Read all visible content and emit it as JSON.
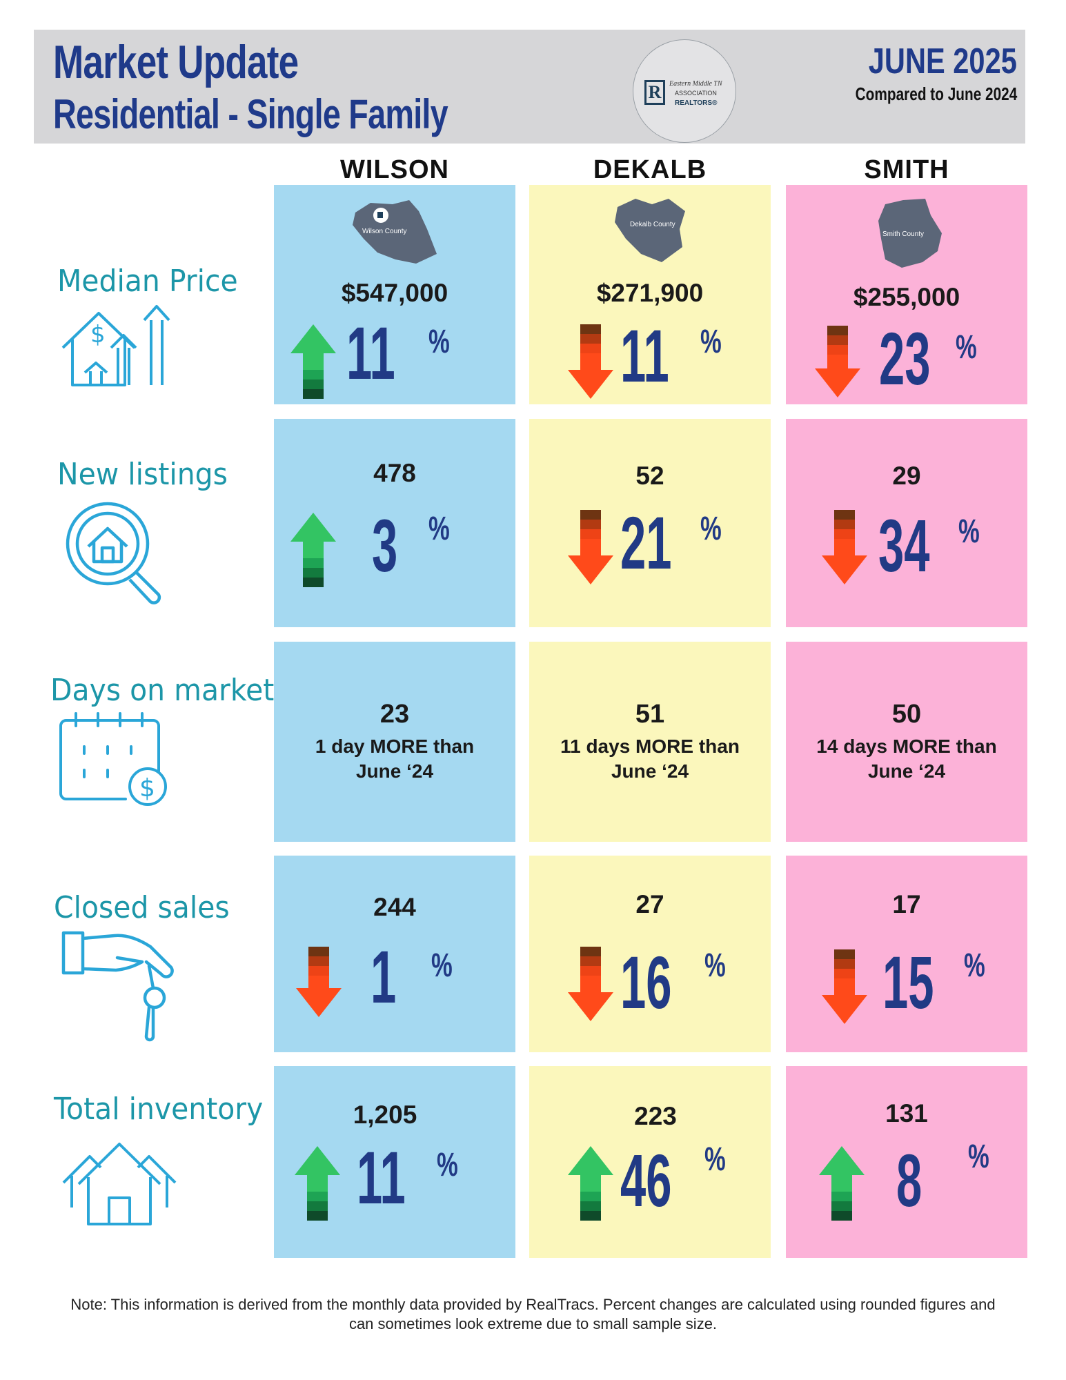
{
  "header": {
    "title_line1": "Market Update",
    "title_line2": "Residential - Single Family",
    "month": "JUNE 2025",
    "compared": "Compared to June 2024",
    "logo": {
      "line1": "Eastern Middle TN",
      "line2": "ASSOCIATION",
      "line3": "REALTORS®",
      "mark": "R"
    }
  },
  "columns": [
    {
      "name": "WILSON",
      "map_label": "Wilson County",
      "color": "#a5d9f1"
    },
    {
      "name": "DEKALB",
      "map_label": "Dekalb County",
      "color": "#fbf7bc"
    },
    {
      "name": "SMITH",
      "map_label": "Smith County",
      "color": "#fcb2d8"
    }
  ],
  "rows": {
    "median_price": {
      "label": "Median Price",
      "icon": "houses-growth-icon",
      "cells": [
        {
          "value": "$547,000",
          "change": "11",
          "direction": "up"
        },
        {
          "value": "$271,900",
          "change": "11",
          "direction": "down"
        },
        {
          "value": "$255,000",
          "change": "23",
          "direction": "down"
        }
      ]
    },
    "new_listings": {
      "label": "New listings",
      "icon": "house-search-icon",
      "cells": [
        {
          "value": "478",
          "change": "3",
          "direction": "up"
        },
        {
          "value": "52",
          "change": "21",
          "direction": "down"
        },
        {
          "value": "29",
          "change": "34",
          "direction": "down"
        }
      ]
    },
    "days_on_market": {
      "label": "Days on market",
      "icon": "calendar-dollar-icon",
      "cells": [
        {
          "value": "23",
          "line1": "1 day MORE than",
          "line2": "June ‘24"
        },
        {
          "value": "51",
          "line1": "11 days MORE than",
          "line2": "June ‘24"
        },
        {
          "value": "50",
          "line1": "14 days MORE than",
          "line2": "June ‘24"
        }
      ]
    },
    "closed_sales": {
      "label": "Closed sales",
      "icon": "hand-key-icon",
      "cells": [
        {
          "value": "244",
          "change": "1",
          "direction": "down"
        },
        {
          "value": "27",
          "change": "16",
          "direction": "down"
        },
        {
          "value": "17",
          "change": "15",
          "direction": "down"
        }
      ]
    },
    "total_inventory": {
      "label": "Total inventory",
      "icon": "houses-icon",
      "cells": [
        {
          "value": "1,205",
          "change": "11",
          "direction": "up"
        },
        {
          "value": "223",
          "change": "46",
          "direction": "up"
        },
        {
          "value": "131",
          "change": "8",
          "direction": "up"
        }
      ]
    }
  },
  "percent_sign": "%",
  "note_line1": "Note: This information is derived from the monthly data provided by RealTracs. Percent changes are calculated using rounded figures and",
  "note_line2": "can sometimes look extreme due to small sample size."
}
